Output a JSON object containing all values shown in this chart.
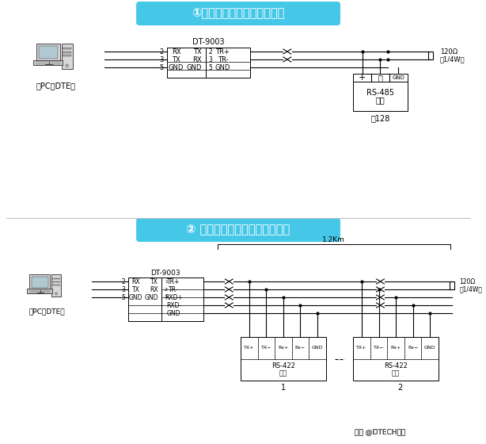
{
  "bg_color": "#ffffff",
  "title1": "①主从半双工通讯（点对点）",
  "title2": "② 主从半双工通讯（点对多点）",
  "title_bg": "#45c8e8",
  "pc_label": "（PC或DTE）",
  "dt9003": "DT-9003",
  "rs485_label": "RS-485",
  "rs422_label": "RS-422",
  "device_label": "设备",
  "to128": "至128",
  "dist": "1.2Km",
  "res_label1": "120Ω",
  "res_label2": "（1/4W）",
  "watermark": "头条 @DTECH帮特",
  "separator_color": "#cccccc"
}
